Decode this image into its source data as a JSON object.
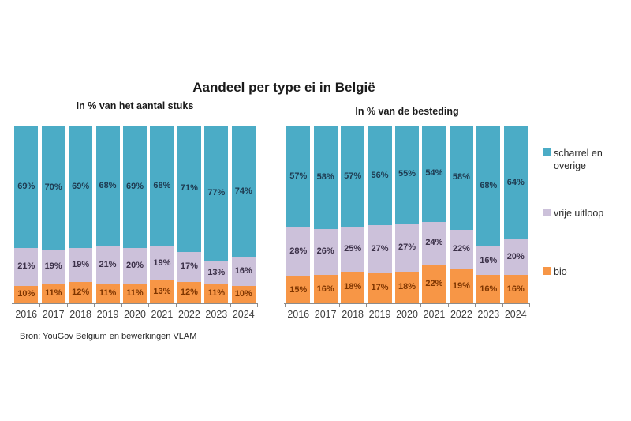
{
  "title": "Aandeel per type ei in België",
  "source": "Bron: YouGov Belgium en bewerkingen VLAM",
  "colors": {
    "scharrel_en_overige": "#4BACC6",
    "vrije_uitloop": "#CCC1DA",
    "bio": "#F79646",
    "frame_border": "#B3B3B3",
    "axis": "#8C8C8C"
  },
  "chart_data": [
    {
      "type": "bar",
      "stacked": true,
      "normalized_100": true,
      "title": "In % van het aantal stuks",
      "categories": [
        "2016",
        "2017",
        "2018",
        "2019",
        "2020",
        "2021",
        "2022",
        "2023",
        "2024"
      ],
      "series": [
        {
          "name": "bio",
          "color": "#F79646",
          "label_color": "#7E3500",
          "values": [
            10,
            11,
            12,
            11,
            11,
            13,
            12,
            11,
            10
          ]
        },
        {
          "name": "vrije uitloop",
          "color": "#CCC1DA",
          "label_color": "#3B3048",
          "values": [
            21,
            19,
            19,
            21,
            20,
            19,
            17,
            13,
            16
          ]
        },
        {
          "name": "scharrel en overige",
          "color": "#4BACC6",
          "label_color": "#1E3A50",
          "values": [
            69,
            70,
            69,
            68,
            69,
            68,
            71,
            77,
            74
          ]
        }
      ],
      "ylim": [
        0,
        100
      ],
      "value_suffix": "%",
      "grid": false
    },
    {
      "type": "bar",
      "stacked": true,
      "normalized_100": true,
      "title": "In % van de besteding",
      "categories": [
        "2016",
        "2017",
        "2018",
        "2019",
        "2020",
        "2021",
        "2022",
        "2023",
        "2024"
      ],
      "series": [
        {
          "name": "bio",
          "color": "#F79646",
          "label_color": "#7E3500",
          "values": [
            15,
            16,
            18,
            17,
            18,
            22,
            19,
            16,
            16
          ]
        },
        {
          "name": "vrije uitloop",
          "color": "#CCC1DA",
          "label_color": "#3B3048",
          "values": [
            28,
            26,
            25,
            27,
            27,
            24,
            22,
            16,
            20
          ]
        },
        {
          "name": "scharrel en overige",
          "color": "#4BACC6",
          "label_color": "#1E3A50",
          "values": [
            57,
            58,
            57,
            56,
            55,
            54,
            58,
            68,
            64
          ]
        }
      ],
      "ylim": [
        0,
        100
      ],
      "value_suffix": "%",
      "grid": false
    }
  ],
  "legend": {
    "position": "right",
    "items": [
      {
        "label": "scharrel en overige",
        "series": "scharrel en overige"
      },
      {
        "label": "vrije uitloop",
        "series": "vrije uitloop"
      },
      {
        "label": "bio",
        "series": "bio"
      }
    ]
  }
}
